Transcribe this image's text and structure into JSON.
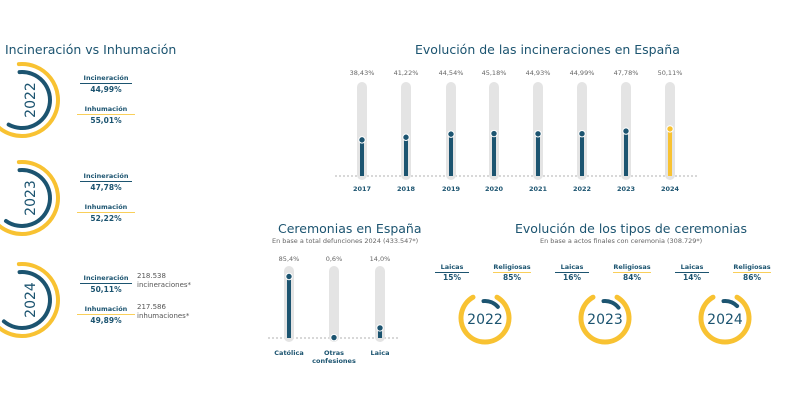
{
  "colors": {
    "navy": "#1c5470",
    "yellow": "#f8c232",
    "track": "#e4e4e4"
  },
  "incin_vs_inhum": {
    "title": "Incineración vs Inhumación",
    "items": [
      {
        "year": "2022",
        "incineracion_label": "Incineración",
        "incineracion": "44,99%",
        "inhumacion_label": "Inhumación",
        "inhumacion": "55,01%",
        "incineracion_value": 44.99
      },
      {
        "year": "2023",
        "incineracion_label": "Incineración",
        "incineracion": "47,78%",
        "inhumacion_label": "Inhumación",
        "inhumacion": "52,22%",
        "incineracion_value": 47.78
      },
      {
        "year": "2024",
        "incineracion_label": "Incineración",
        "incineracion": "50,11%",
        "inhumacion_label": "Inhumación",
        "inhumacion": "49,89%",
        "incineracion_value": 50.11,
        "incineracion_note": "218.538 incineraciones*",
        "inhumacion_note": "217.586 inhumaciones*"
      }
    ]
  },
  "chart_data": [
    {
      "type": "bar",
      "title": "Evolución de las incineraciones en España",
      "categories": [
        "2017",
        "2018",
        "2019",
        "2020",
        "2021",
        "2022",
        "2023",
        "2024"
      ],
      "values": [
        38.43,
        41.22,
        44.54,
        45.18,
        44.93,
        44.99,
        47.78,
        50.11
      ],
      "labels": [
        "38,43%",
        "41,22%",
        "44,54%",
        "45,18%",
        "44,93%",
        "44,99%",
        "47,78%",
        "50,11%"
      ],
      "ylim": [
        0,
        100
      ],
      "highlight": "2024"
    },
    {
      "type": "bar",
      "title": "Ceremonias en España",
      "subtitle": "En base a total defunciones 2024 (433.547*)",
      "categories": [
        "Católica",
        "Otras confesiones",
        "Laica"
      ],
      "values": [
        85.4,
        0.6,
        14.0
      ],
      "labels": [
        "85,4%",
        "0,6%",
        "14,0%"
      ],
      "ylim": [
        0,
        100
      ]
    },
    {
      "type": "pie",
      "title": "Evolución de los tipos de ceremonias",
      "subtitle": "En base a actos finales con ceremonia (308.729*)",
      "groups": [
        {
          "year": "2022",
          "laicas_label": "Laicas",
          "laicas": "15%",
          "religiosas_label": "Religiosas",
          "religiosas": "85%",
          "laicas_value": 15
        },
        {
          "year": "2023",
          "laicas_label": "Laicas",
          "laicas": "16%",
          "religiosas_label": "Religiosas",
          "religiosas": "84%",
          "laicas_value": 16
        },
        {
          "year": "2024",
          "laicas_label": "Laicas",
          "laicas": "14%",
          "religiosas_label": "Religiosas",
          "religiosas": "86%",
          "laicas_value": 14
        }
      ]
    }
  ]
}
